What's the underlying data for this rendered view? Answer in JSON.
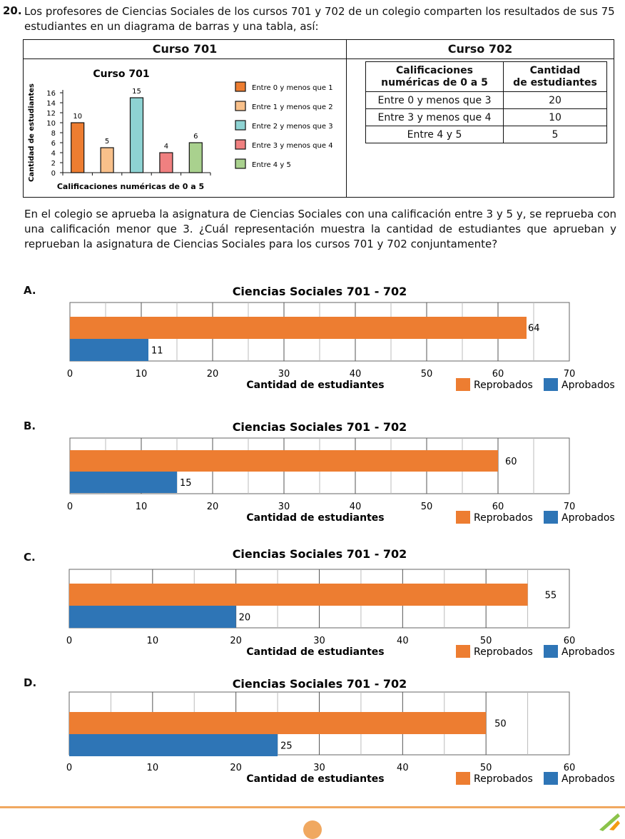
{
  "question": {
    "number": "20.",
    "text": "Los profesores de Ciencias Sociales de los cursos 701 y 702 de un colegio comparten los resultados de sus 75 estudiantes en un diagrama de barras y una tabla, así:",
    "paragraph": "En el colegio se aprueba la asignatura de Ciencias Sociales con una calificación entre 3 y 5 y, se reprueba con una calificación menor que 3. ¿Cuál representación muestra la cantidad de estudiantes que aprueban y reprueban la asignatura de Ciencias Sociales para los cursos 701 y 702 conjuntamente?"
  },
  "panel701": {
    "header": "Curso 701"
  },
  "panel702": {
    "header": "Curso 702",
    "col1_line1": "Calificaciones",
    "col1_line2": "numéricas de 0 a 5",
    "col2_line1": "Cantidad",
    "col2_line2": "de estudiantes",
    "rows": [
      {
        "label": "Entre 0 y menos que 3",
        "value": "20"
      },
      {
        "label": "Entre 3 y menos que 4",
        "value": "10"
      },
      {
        "label": "Entre 4 y 5",
        "value": "5"
      }
    ]
  },
  "colors": {
    "orange": "#ED7D31",
    "peach": "#F8C08A",
    "teal": "#8ED3D3",
    "red": "#F08080",
    "green": "#A9D18E",
    "blue": "#2E75B6"
  },
  "chart_data": [
    {
      "type": "bar",
      "title": "Curso 701",
      "xlabel": "Calificaciones numéricas de 0 a 5",
      "ylabel": "Cantidad de estudiantes",
      "ylim": [
        0,
        16
      ],
      "yticks": [
        "0",
        "2",
        "4",
        "6",
        "8",
        "10",
        "12",
        "14",
        "16"
      ],
      "categories": [
        "Entre 0 y menos que 1",
        "Entre 1 y menos que 2",
        "Entre 2 y menos que 3",
        "Entre 3 y menos que 4",
        "Entre 4 y 5"
      ],
      "values": [
        10,
        5,
        15,
        4,
        6
      ],
      "value_labels": [
        "10",
        "5",
        "15",
        "4",
        "6"
      ],
      "bar_colors": [
        "#ED7D31",
        "#F8C08A",
        "#8ED3D3",
        "#F08080",
        "#A9D18E"
      ],
      "legend": "right",
      "grid": false
    },
    {
      "type": "bar",
      "orientation": "horizontal",
      "option": "A.",
      "title": "Ciencias Sociales 701 - 702",
      "xlabel": "Cantidad de estudiantes",
      "xlim": [
        0,
        70
      ],
      "xticks": [
        "0",
        "10",
        "20",
        "30",
        "40",
        "50",
        "60",
        "70"
      ],
      "series": [
        {
          "name": "Reprobados",
          "value": 64,
          "label": "64",
          "color": "#ED7D31"
        },
        {
          "name": "Aprobados",
          "value": 11,
          "label": "11",
          "color": "#2E75B6"
        }
      ],
      "legend": "bottom-right",
      "grid": true
    },
    {
      "type": "bar",
      "orientation": "horizontal",
      "option": "B.",
      "title": "Ciencias Sociales 701 - 702",
      "xlabel": "Cantidad de estudiantes",
      "xlim": [
        0,
        70
      ],
      "xticks": [
        "0",
        "10",
        "20",
        "30",
        "40",
        "50",
        "60",
        "70"
      ],
      "series": [
        {
          "name": "Reprobados",
          "value": 60,
          "label": "60",
          "color": "#ED7D31"
        },
        {
          "name": "Aprobados",
          "value": 15,
          "label": "15",
          "color": "#2E75B6"
        }
      ],
      "legend": "bottom-right",
      "grid": true
    },
    {
      "type": "bar",
      "orientation": "horizontal",
      "option": "C.",
      "title": "Ciencias Sociales 701 - 702",
      "xlabel": "Cantidad de estudiantes",
      "xlim": [
        0,
        60
      ],
      "xticks": [
        "0",
        "10",
        "20",
        "30",
        "40",
        "50",
        "60"
      ],
      "series": [
        {
          "name": "Reprobados",
          "value": 55,
          "label": "55",
          "color": "#ED7D31"
        },
        {
          "name": "Aprobados",
          "value": 20,
          "label": "20",
          "color": "#2E75B6"
        }
      ],
      "legend": "bottom-right",
      "grid": true
    },
    {
      "type": "bar",
      "orientation": "horizontal",
      "option": "D.",
      "title": "Ciencias Sociales 701 - 702",
      "xlabel": "Cantidad de estudiantes",
      "xlim": [
        0,
        60
      ],
      "xticks": [
        "0",
        "10",
        "20",
        "30",
        "40",
        "50",
        "60"
      ],
      "series": [
        {
          "name": "Reprobados",
          "value": 50,
          "label": "50",
          "color": "#ED7D31"
        },
        {
          "name": "Aprobados",
          "value": 25,
          "label": "25",
          "color": "#2E75B6"
        }
      ],
      "legend": "bottom-right",
      "grid": true
    }
  ]
}
